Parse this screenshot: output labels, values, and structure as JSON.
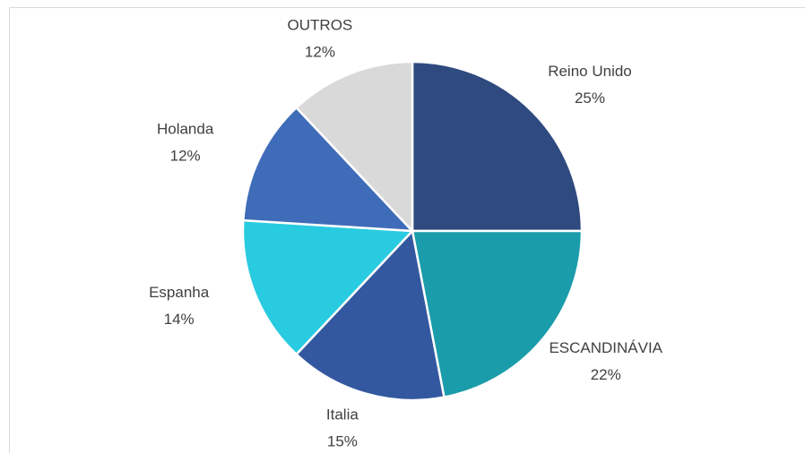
{
  "chart_data": {
    "type": "pie",
    "categories": [
      "Reino Unido",
      "ESCANDINÁVIA",
      "Italia",
      "Espanha",
      "Holanda",
      "OUTROS"
    ],
    "values": [
      25,
      22,
      15,
      14,
      12,
      12
    ],
    "value_labels": [
      "25%",
      "22%",
      "15%",
      "14%",
      "12%",
      "12%"
    ],
    "colors": [
      "#2e4a7f",
      "#1b9caa",
      "#3358a0",
      "#29cbe0",
      "#3f6cb8",
      "#d9d9d9"
    ]
  }
}
